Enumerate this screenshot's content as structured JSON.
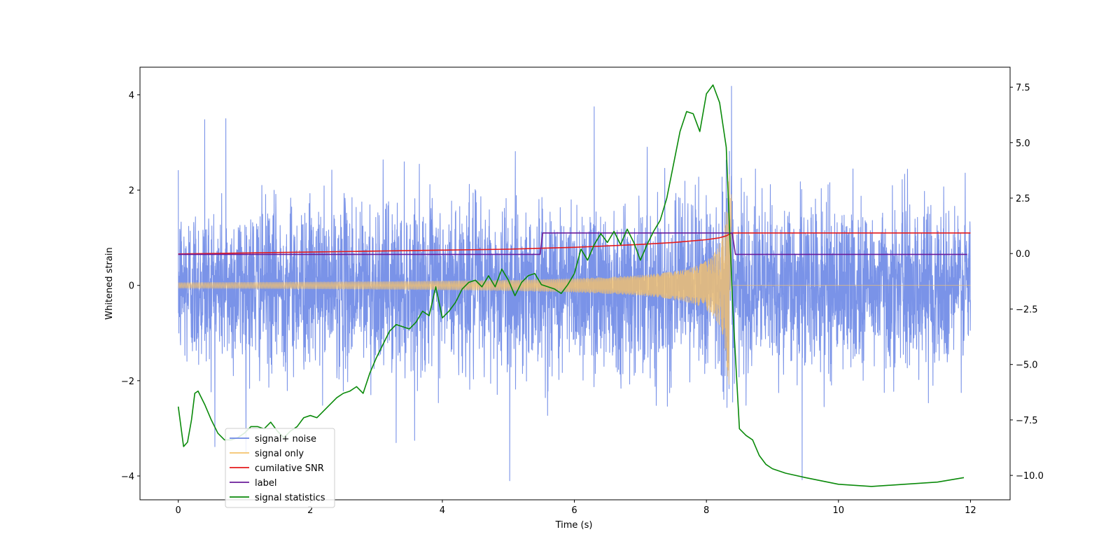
{
  "chart_data": {
    "type": "line",
    "title": "",
    "xlabel": "Time (s)",
    "ylabel": "Whitened strain",
    "y2label": "",
    "xlim": [
      -0.58,
      12.6
    ],
    "ylim": [
      -4.5,
      4.58
    ],
    "y2lim": [
      -11.1,
      8.4
    ],
    "xticks": [
      0,
      2,
      4,
      6,
      8,
      10,
      12
    ],
    "xtick_labels": [
      "0",
      "2",
      "4",
      "6",
      "8",
      "10",
      "12"
    ],
    "yticks": [
      -4,
      -2,
      0,
      2,
      4
    ],
    "ytick_labels": [
      "−4",
      "−2",
      "0",
      "2",
      "4"
    ],
    "y2ticks": [
      -10,
      -7.5,
      -5,
      -2.5,
      0,
      2.5,
      5,
      7.5
    ],
    "y2tick_labels": [
      "−10.0",
      "−7.5",
      "−5.0",
      "−2.5",
      "0.0",
      "2.5",
      "5.0",
      "7.5"
    ],
    "legend_position": "lower-left",
    "series": [
      {
        "name": "signal+ noise",
        "color": "#6b87e6",
        "axis": "left",
        "kind": "noise",
        "x_range": [
          0,
          12
        ],
        "noise_std": 0.85,
        "max_abs": 4.2,
        "notable_peaks": [
          [
            5.02,
            -4.1
          ],
          [
            6.3,
            3.75
          ],
          [
            8.38,
            4.18
          ],
          [
            9.45,
            -4.08
          ],
          [
            3.3,
            -3.3
          ],
          [
            0.72,
            3.5
          ],
          [
            0.4,
            3.48
          ]
        ]
      },
      {
        "name": "signal only",
        "color": "#f5c26b",
        "axis": "left",
        "kind": "chirp",
        "x_range": [
          0,
          12
        ],
        "merger_time": 8.38,
        "amplitude_start": 0.06,
        "amplitude_peak": 2.4
      },
      {
        "name": "cumilative SNR",
        "color": "#e41a1c",
        "axis": "left",
        "x": [
          0,
          1,
          2,
          3,
          4,
          5,
          6,
          7,
          7.5,
          8,
          8.2,
          8.3,
          8.38,
          9,
          10,
          11,
          12
        ],
        "values": [
          0.66,
          0.68,
          0.7,
          0.72,
          0.74,
          0.76,
          0.8,
          0.86,
          0.9,
          0.96,
          1.0,
          1.04,
          1.1,
          1.1,
          1.1,
          1.1,
          1.1
        ]
      },
      {
        "name": "label",
        "color": "#6a1b9a",
        "axis": "left",
        "x": [
          0,
          5.48,
          5.52,
          8.39,
          8.44,
          11.95
        ],
        "values": [
          0.65,
          0.65,
          1.1,
          1.1,
          0.65,
          0.65
        ]
      },
      {
        "name": "signal statistics",
        "color": "#0a8a0a",
        "axis": "right",
        "x": [
          0,
          0.08,
          0.14,
          0.2,
          0.25,
          0.3,
          0.4,
          0.5,
          0.6,
          0.7,
          0.8,
          0.9,
          1.0,
          1.1,
          1.2,
          1.3,
          1.4,
          1.5,
          1.6,
          1.7,
          1.8,
          1.9,
          2.0,
          2.1,
          2.2,
          2.3,
          2.4,
          2.5,
          2.6,
          2.7,
          2.8,
          2.9,
          3.0,
          3.1,
          3.2,
          3.3,
          3.4,
          3.5,
          3.6,
          3.7,
          3.8,
          3.9,
          4.0,
          4.1,
          4.2,
          4.3,
          4.4,
          4.5,
          4.6,
          4.7,
          4.8,
          4.9,
          5.0,
          5.1,
          5.2,
          5.3,
          5.4,
          5.5,
          5.6,
          5.7,
          5.8,
          5.9,
          6.0,
          6.1,
          6.2,
          6.3,
          6.4,
          6.5,
          6.6,
          6.7,
          6.8,
          6.9,
          7.0,
          7.1,
          7.2,
          7.3,
          7.4,
          7.5,
          7.6,
          7.7,
          7.8,
          7.9,
          8.0,
          8.1,
          8.2,
          8.3,
          8.4,
          8.5,
          8.6,
          8.7,
          8.8,
          8.9,
          9.0,
          9.2,
          9.5,
          10.0,
          10.5,
          11.0,
          11.5,
          11.9
        ],
        "values": [
          -6.9,
          -8.7,
          -8.5,
          -7.5,
          -6.3,
          -6.2,
          -6.8,
          -7.5,
          -8.1,
          -8.4,
          -8.4,
          -8.3,
          -8.1,
          -7.8,
          -7.8,
          -7.9,
          -7.6,
          -8.0,
          -8.3,
          -8.0,
          -7.8,
          -7.4,
          -7.3,
          -7.4,
          -7.1,
          -6.8,
          -6.5,
          -6.3,
          -6.2,
          -6.0,
          -6.3,
          -5.4,
          -4.7,
          -4.1,
          -3.5,
          -3.2,
          -3.3,
          -3.4,
          -3.1,
          -2.6,
          -2.8,
          -1.5,
          -2.9,
          -2.6,
          -2.2,
          -1.6,
          -1.3,
          -1.2,
          -1.5,
          -1.0,
          -1.5,
          -0.7,
          -1.2,
          -1.9,
          -1.3,
          -1.0,
          -0.9,
          -1.4,
          -1.5,
          -1.6,
          -1.8,
          -1.4,
          -0.9,
          0.2,
          -0.3,
          0.4,
          0.9,
          0.5,
          1.0,
          0.4,
          1.1,
          0.5,
          -0.3,
          0.4,
          1.0,
          1.5,
          2.5,
          4.0,
          5.5,
          6.4,
          6.3,
          5.5,
          7.2,
          7.6,
          6.8,
          4.8,
          -2.5,
          -7.9,
          -8.2,
          -8.4,
          -9.1,
          -9.5,
          -9.7,
          -9.9,
          -10.1,
          -10.4,
          -10.5,
          -10.4,
          -10.3,
          -10.1
        ]
      }
    ]
  }
}
